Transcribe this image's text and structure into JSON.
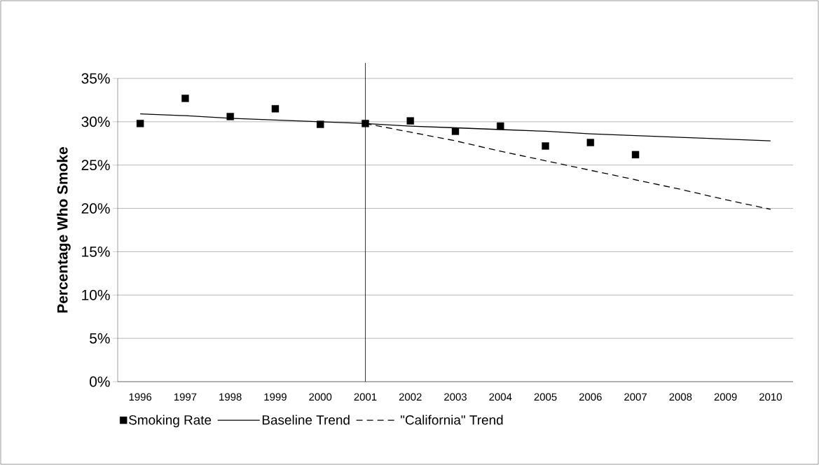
{
  "chart_data": {
    "type": "line",
    "ylabel": "Percentage Who Smoke",
    "categories": [
      "1996",
      "1997",
      "1998",
      "1999",
      "2000",
      "2001",
      "2002",
      "2003",
      "2004",
      "2005",
      "2006",
      "2007",
      "2008",
      "2009",
      "2010"
    ],
    "series": [
      {
        "name": "Smoking Rate",
        "type": "scatter",
        "marker": "square",
        "color": "#000000",
        "values": [
          29.8,
          32.7,
          30.6,
          31.5,
          29.7,
          29.8,
          30.1,
          28.9,
          29.5,
          27.2,
          27.6,
          26.2,
          null,
          null,
          null
        ]
      },
      {
        "name": "Baseline Trend",
        "line_style": "solid",
        "color": "#000000",
        "values": [
          30.9,
          30.7,
          30.4,
          30.2,
          30.0,
          29.8,
          29.5,
          29.3,
          29.1,
          28.9,
          28.6,
          28.4,
          28.2,
          28.0,
          27.8
        ]
      },
      {
        "name": "\"California\" Trend",
        "line_style": "dashed",
        "color": "#000000",
        "values": [
          null,
          null,
          null,
          null,
          null,
          29.8,
          28.8,
          27.8,
          26.6,
          25.5,
          24.4,
          23.3,
          22.2,
          21.0,
          19.9
        ]
      }
    ],
    "ylim": [
      0,
      35
    ],
    "yticks": [
      {
        "value": 0,
        "label": "0%"
      },
      {
        "value": 5,
        "label": "5%"
      },
      {
        "value": 10,
        "label": "10%"
      },
      {
        "value": 15,
        "label": "15%"
      },
      {
        "value": 20,
        "label": "20%"
      },
      {
        "value": 25,
        "label": "25%"
      },
      {
        "value": 30,
        "label": "30%"
      },
      {
        "value": 35,
        "label": "35%"
      }
    ],
    "grid": "y",
    "legend": "bottom",
    "ref_lines": [
      {
        "axis": "x",
        "value": "2001",
        "color": "#000000"
      }
    ]
  }
}
